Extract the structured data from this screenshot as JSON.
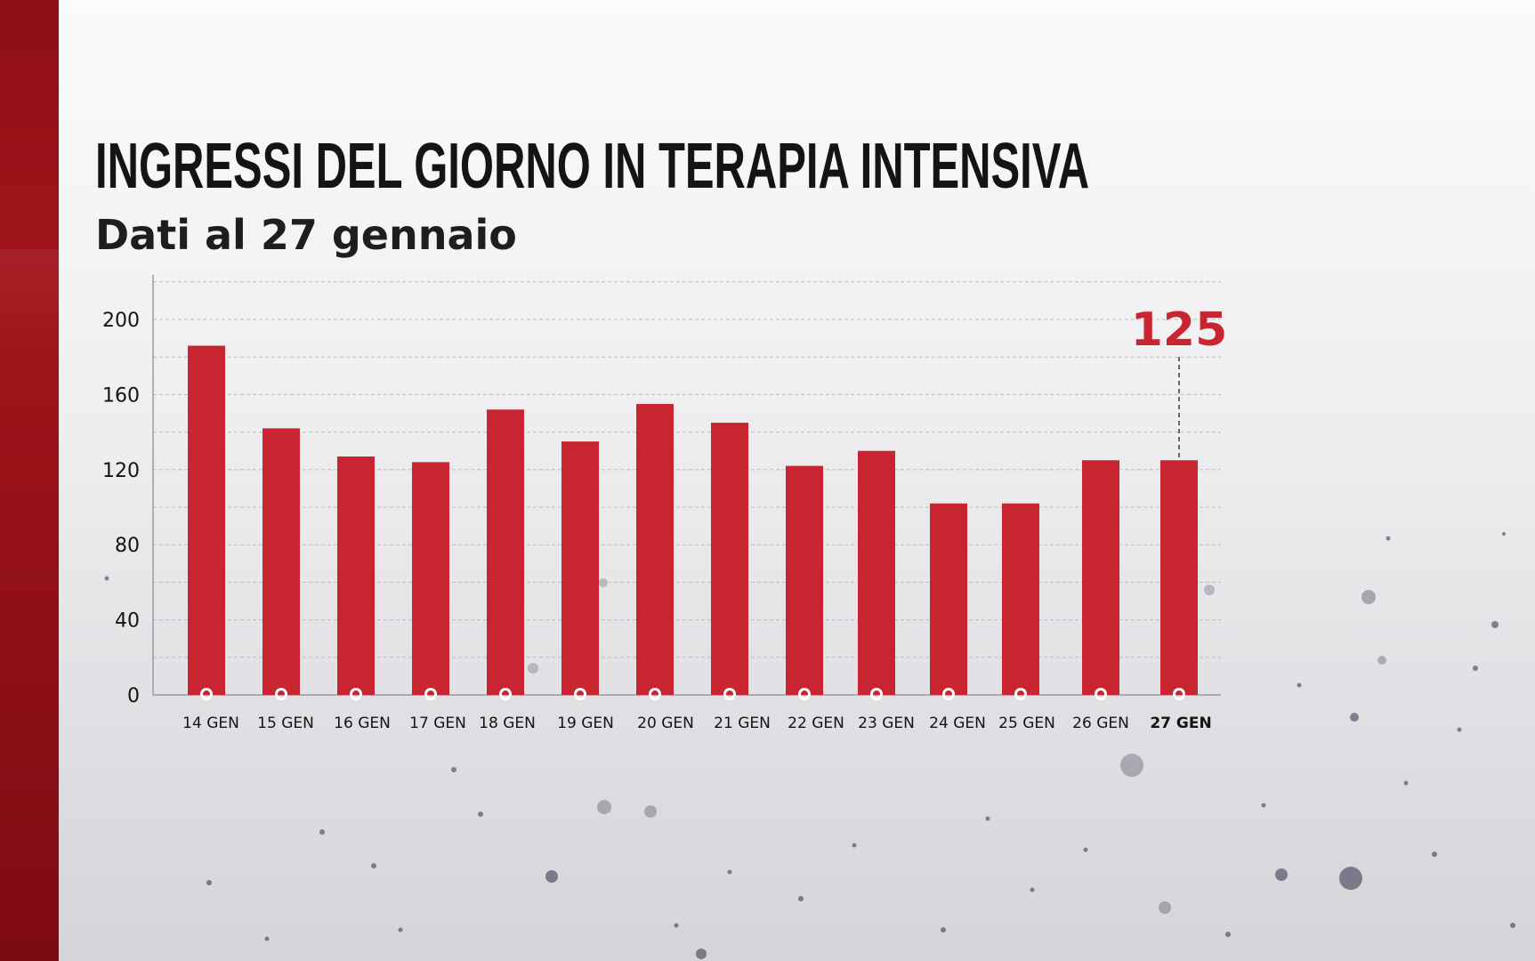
{
  "title": "INGRESSI DEL GIORNO IN TERAPIA INTENSIVA",
  "subtitle": "Dati al 27 gennaio",
  "colors": {
    "bar": "#c92530",
    "accent_bar_left": "#9a1218",
    "highlight_label": "#c92530",
    "text": "#141414",
    "grid": "#bdbdc2"
  },
  "chart_data": {
    "type": "bar",
    "categories": [
      "14 GEN",
      "15 GEN",
      "16 GEN",
      "17 GEN",
      "18 GEN",
      "19 GEN",
      "20 GEN",
      "21 GEN",
      "22 GEN",
      "23 GEN",
      "24 GEN",
      "25 GEN",
      "26 GEN",
      "27 GEN"
    ],
    "values": [
      186,
      142,
      127,
      124,
      152,
      135,
      155,
      145,
      122,
      130,
      102,
      102,
      125,
      125
    ],
    "ylim": [
      0,
      220
    ],
    "yticks": [
      0,
      40,
      80,
      120,
      160,
      200
    ],
    "grid": "dashed horizontal every 20",
    "highlight": {
      "category": "27 GEN",
      "label": "125"
    }
  }
}
